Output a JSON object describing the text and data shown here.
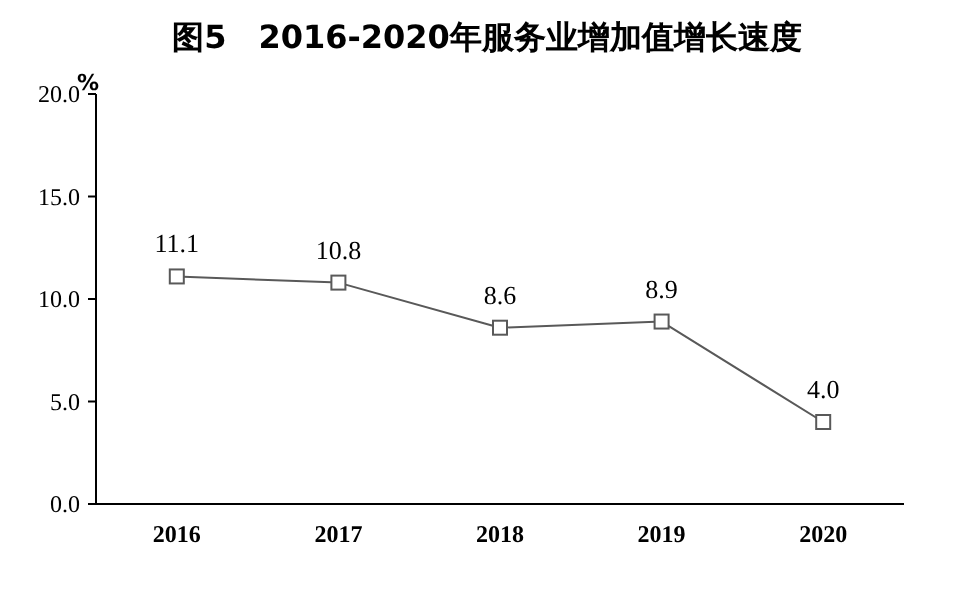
{
  "chart_data": {
    "type": "line",
    "title": "图5　2016-2020年服务业增加值增长速度",
    "ylabel": "%",
    "categories": [
      "2016",
      "2017",
      "2018",
      "2019",
      "2020"
    ],
    "series": [
      {
        "color": "#595959",
        "values": [
          11.1,
          10.8,
          8.6,
          8.9,
          4.0
        ]
      }
    ],
    "value_labels": [
      "11.1",
      "10.8",
      "8.6",
      "8.9",
      "4.0"
    ],
    "ylim": [
      0,
      20
    ],
    "yticks": [
      {
        "value": 0,
        "label": "0.0"
      },
      {
        "value": 5,
        "label": "5.0"
      },
      {
        "value": 10,
        "label": "10.0"
      },
      {
        "value": 15,
        "label": "15.0"
      },
      {
        "value": 20,
        "label": "20.0"
      }
    ],
    "marker": "square",
    "line_style": "solid"
  }
}
